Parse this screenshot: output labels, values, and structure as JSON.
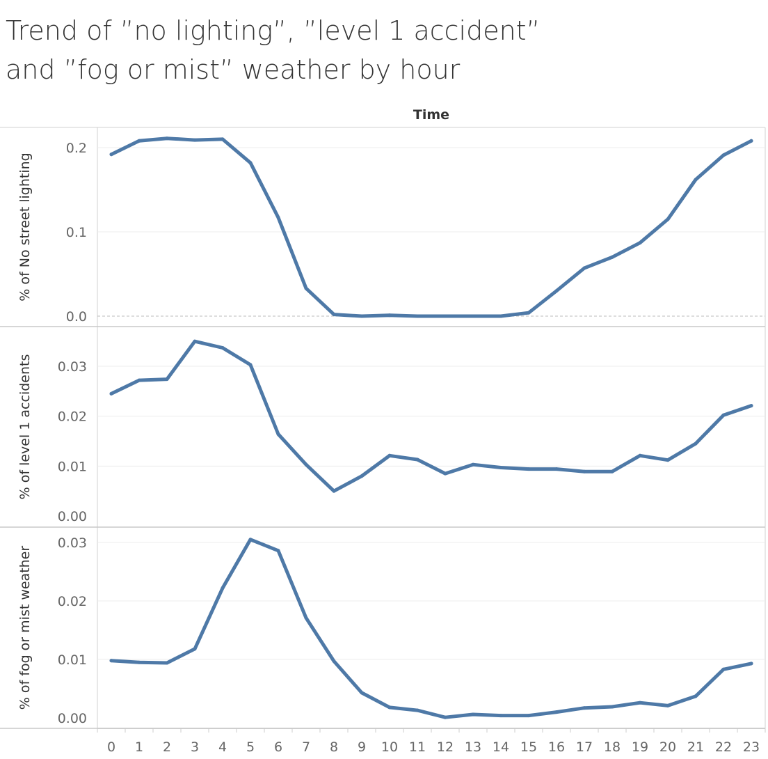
{
  "title": {
    "line1": "Trend of ”no lighting”, ”level 1 accident”",
    "line2": "and ”fog or mist” weather by hour"
  },
  "chart_data": {
    "type": "line",
    "xlabel": "Time",
    "x": [
      "0",
      "1",
      "2",
      "3",
      "4",
      "5",
      "6",
      "7",
      "8",
      "9",
      "10",
      "11",
      "12",
      "13",
      "14",
      "15",
      "16",
      "17",
      "18",
      "19",
      "20",
      "21",
      "22",
      "23"
    ],
    "line_color": "#4e79a7",
    "grid": true,
    "panels": [
      {
        "ylabel": "% of No street lighting",
        "ylim": [
          0,
          0.22
        ],
        "yticks": [
          "0.0",
          "0.1",
          "0.2"
        ],
        "ytick_values": [
          0,
          0.1,
          0.2
        ],
        "zero_line": true,
        "values": [
          0.192,
          0.208,
          0.211,
          0.209,
          0.21,
          0.182,
          0.117,
          0.033,
          0.002,
          0.0,
          0.001,
          0.0,
          0.0,
          0.0,
          0.0,
          0.004,
          0.03,
          0.057,
          0.07,
          0.087,
          0.115,
          0.162,
          0.191,
          0.208
        ]
      },
      {
        "ylabel": "% of level 1 accidents",
        "ylim": [
          0,
          0.037
        ],
        "yticks": [
          "0.00",
          "0.01",
          "0.02",
          "0.03"
        ],
        "ytick_values": [
          0,
          0.01,
          0.02,
          0.03
        ],
        "zero_line": false,
        "values": [
          0.0245,
          0.0272,
          0.0274,
          0.035,
          0.0337,
          0.0303,
          0.0164,
          0.0103,
          0.005,
          0.008,
          0.0121,
          0.0113,
          0.0085,
          0.0103,
          0.0097,
          0.0094,
          0.0094,
          0.0089,
          0.0089,
          0.0121,
          0.0112,
          0.0145,
          0.0202,
          0.0221
        ]
      },
      {
        "ylabel": "% of fog or mist weather",
        "ylim": [
          0,
          0.032
        ],
        "yticks": [
          "0.00",
          "0.01",
          "0.02",
          "0.03"
        ],
        "ytick_values": [
          0,
          0.01,
          0.02,
          0.03
        ],
        "zero_line": false,
        "values": [
          0.0098,
          0.0095,
          0.0094,
          0.0118,
          0.0222,
          0.0305,
          0.0286,
          0.0171,
          0.0097,
          0.0043,
          0.0018,
          0.0013,
          0.0001,
          0.0006,
          0.0004,
          0.0004,
          0.001,
          0.0017,
          0.0019,
          0.0026,
          0.0021,
          0.0037,
          0.0083,
          0.0093
        ]
      }
    ]
  }
}
